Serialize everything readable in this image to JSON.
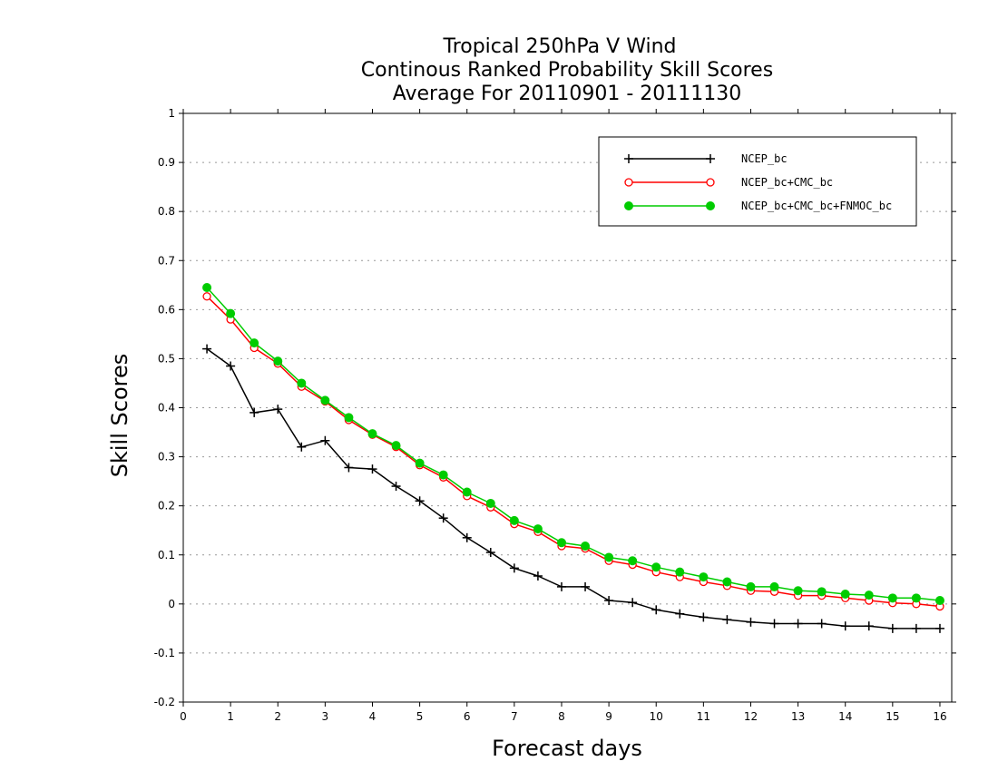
{
  "chart_data": {
    "type": "line",
    "title_lines": [
      "Tropical 250hPa V Wind",
      "Continous Ranked Probability Skill Scores",
      "Average For 20110901 - 20111130"
    ],
    "xlabel": "Forecast days",
    "ylabel": "Skill Scores",
    "xlim": [
      0,
      16.25
    ],
    "ylim": [
      -0.2,
      1
    ],
    "x_ticks": [
      0,
      1,
      2,
      3,
      4,
      5,
      6,
      7,
      8,
      9,
      10,
      11,
      12,
      13,
      14,
      15,
      16
    ],
    "y_ticks": [
      -0.2,
      -0.1,
      0,
      0.1,
      0.2,
      0.3,
      0.4,
      0.5,
      0.6,
      0.7,
      0.8,
      0.9,
      1
    ],
    "y_tick_labels": [
      "-0.2",
      "-0.1",
      "0",
      "0.1",
      "0.2",
      "0.3",
      "0.4",
      "0.5",
      "0.6",
      "0.7",
      "0.8",
      "0.9",
      "1"
    ],
    "grid": "horizontal dotted",
    "legend_position": "top-right",
    "x": [
      0.5,
      1,
      1.5,
      2,
      2.5,
      3,
      3.5,
      4,
      4.5,
      5,
      5.5,
      6,
      6.5,
      7,
      7.5,
      8,
      8.5,
      9,
      9.5,
      10,
      10.5,
      11,
      11.5,
      12,
      12.5,
      13,
      13.5,
      14,
      14.5,
      15,
      15.5,
      16
    ],
    "series": [
      {
        "name": "NCEP_bc",
        "color": "#000000",
        "marker": "plus",
        "values": [
          0.52,
          0.485,
          0.39,
          0.397,
          0.32,
          0.333,
          0.278,
          0.275,
          0.24,
          0.21,
          0.175,
          0.135,
          0.105,
          0.073,
          0.057,
          0.035,
          0.035,
          0.007,
          0.003,
          -0.012,
          -0.02,
          -0.027,
          -0.032,
          -0.037,
          -0.04,
          -0.04,
          -0.04,
          -0.045,
          -0.045,
          -0.05,
          -0.05,
          -0.05
        ]
      },
      {
        "name": "NCEP_bc+CMC_bc",
        "color": "#ff0000",
        "marker": "open-circle",
        "values": [
          0.627,
          0.58,
          0.522,
          0.49,
          0.443,
          0.413,
          0.375,
          0.345,
          0.32,
          0.283,
          0.258,
          0.22,
          0.197,
          0.163,
          0.147,
          0.118,
          0.113,
          0.088,
          0.08,
          0.065,
          0.055,
          0.045,
          0.037,
          0.027,
          0.025,
          0.017,
          0.017,
          0.012,
          0.007,
          0.002,
          0.0,
          -0.005
        ]
      },
      {
        "name": "NCEP_bc+CMC_bc+FNMOC_bc",
        "color": "#00cc00",
        "marker": "filled-circle",
        "values": [
          0.645,
          0.592,
          0.532,
          0.495,
          0.45,
          0.415,
          0.38,
          0.347,
          0.323,
          0.287,
          0.263,
          0.228,
          0.205,
          0.17,
          0.153,
          0.125,
          0.118,
          0.095,
          0.088,
          0.075,
          0.065,
          0.055,
          0.045,
          0.035,
          0.035,
          0.027,
          0.025,
          0.02,
          0.018,
          0.012,
          0.012,
          0.007
        ]
      }
    ]
  }
}
